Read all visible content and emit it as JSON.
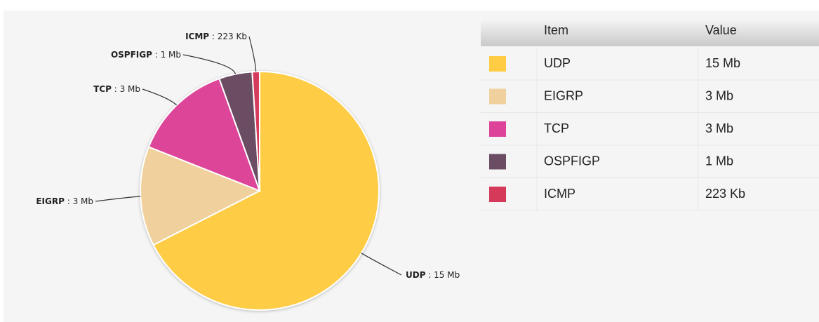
{
  "chart_data": {
    "type": "pie",
    "categories": [
      "UDP",
      "EIGRP",
      "TCP",
      "OSPFIGP",
      "ICMP"
    ],
    "values": [
      15,
      3,
      3,
      1,
      0.223
    ],
    "value_labels": [
      "15 Mb",
      "3 Mb",
      "3 Mb",
      "1 Mb",
      "223 Kb"
    ],
    "colors": [
      "#ffcc44",
      "#f0d09c",
      "#dd4499",
      "#6b4d63",
      "#d53a5b"
    ]
  },
  "table": {
    "headers": [
      "Item",
      "Value"
    ]
  }
}
